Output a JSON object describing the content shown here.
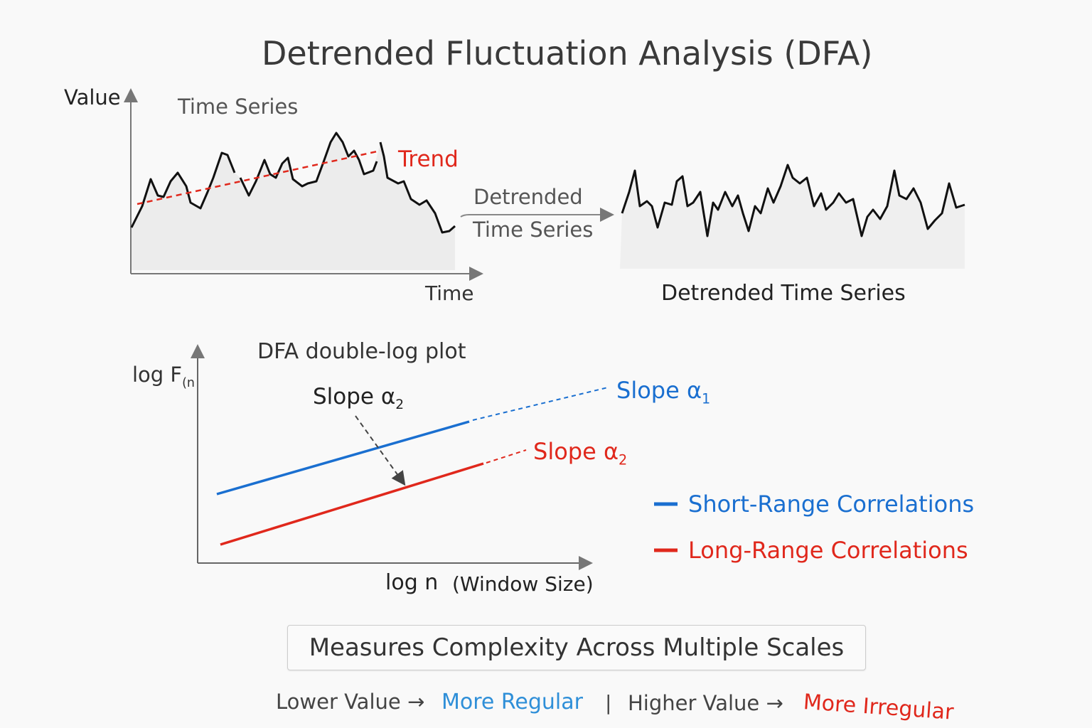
{
  "title": "Detrended Fluctuation Analysis (DFA)",
  "top": {
    "y_label": "Value",
    "series_label": "Time Series",
    "trend_label": "Trend",
    "x_label": "Time",
    "arrow_label_1": "Detrended",
    "arrow_label_2": "Time Series",
    "detrended_caption": "Detrended Time Series"
  },
  "bottom": {
    "plot_title": "DFA double-log plot",
    "y_label": "log F",
    "y_label_sub": "(n",
    "x_label": "log n",
    "x_label_note": "(Window Size)",
    "annotation": "Slope α",
    "annotation_sub": "2",
    "slope1": "Slope α",
    "slope1_sub": "1",
    "slope2": "Slope α",
    "slope2_sub": "2",
    "legend": [
      {
        "label": "Short-Range Correlations",
        "color": "#1a6fd0"
      },
      {
        "label": "Long-Range Correlations",
        "color": "#e0281c"
      }
    ]
  },
  "summary": "Measures Complexity Across Multiple Scales",
  "footer": {
    "lower": "Lower Value →",
    "regular": "More Regular",
    "sep": "|",
    "higher": "Higher Value →",
    "irregular": "More Irregular"
  },
  "colors": {
    "blue": "#1a6fd0",
    "red": "#e0281c",
    "text": "#333333"
  }
}
